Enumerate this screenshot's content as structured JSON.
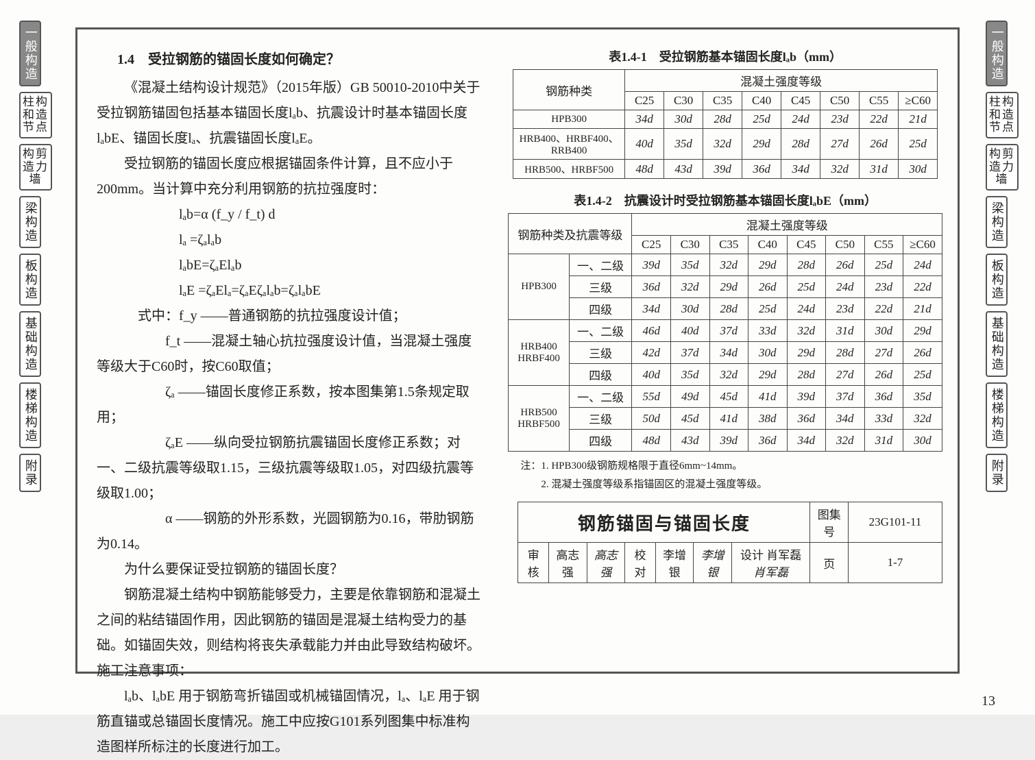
{
  "tabs": {
    "items": [
      {
        "label": "一般构造",
        "active": true
      },
      {
        "label": "柱构和造节点",
        "wide": true
      },
      {
        "label": "构剪造力墙",
        "wide": true
      },
      {
        "label": "梁构造"
      },
      {
        "label": "板构造"
      },
      {
        "label": "基础构造"
      },
      {
        "label": "楼梯构造"
      },
      {
        "label": "附录"
      }
    ]
  },
  "left": {
    "heading": "1.4　受拉钢筋的锚固长度如何确定？",
    "p1": "《混凝土结构设计规范》（2015年版）GB 50010-2010中关于受拉钢筋锚固包括基本锚固长度lₐb、抗震设计时基本锚固长度lₐbE、锚固长度lₐ、抗震锚固长度lₐE。",
    "p2": "受拉钢筋的锚固长度应根据锚固条件计算，且不应小于200mm。当计算中充分利用钢筋的抗拉强度时：",
    "f1": "lₐb=α (f_y / f_t) d",
    "f2": "lₐ =ζₐlₐb",
    "f3": "lₐbE=ζₐElₐb",
    "f4": "lₐE =ζₐElₐ=ζₐEζₐlₐb=ζₐlₐbE",
    "legend_head": "式中：f_y ——普通钢筋的抗拉强度设计值；",
    "legend_ft": "f_t ——混凝土轴心抗拉强度设计值，当混凝土强度等级大于C60时，按C60取值；",
    "legend_za": "ζₐ ——锚固长度修正系数，按本图集第1.5条规定取用；",
    "legend_zae": "ζₐE ——纵向受拉钢筋抗震锚固长度修正系数；对一、二级抗震等级取1.15，三级抗震等级取1.05，对四级抗震等级取1.00；",
    "legend_a": "α ——钢筋的外形系数，光圆钢筋为0.16，带肋钢筋为0.14。",
    "p3": "为什么要保证受拉钢筋的锚固长度？",
    "p4": "钢筋混凝土结构中钢筋能够受力，主要是依靠钢筋和混凝土之间的粘结锚固作用，因此钢筋的锚固是混凝土结构受力的基础。如锚固失效，则结构将丧失承载能力并由此导致结构破坏。",
    "p5": "施工注意事项：",
    "p6": "lₐb、lₐbE 用于钢筋弯折锚固或机械锚固情况，lₐ、lₐE 用于钢筋直锚或总锚固长度情况。施工中应按G101系列图集中标准构造图样所标注的长度进行加工。"
  },
  "table1": {
    "title": "表1.4-1　受拉钢筋基本锚固长度lₐb（mm）",
    "head1": "钢筋种类",
    "head2": "混凝土强度等级",
    "cols": [
      "C25",
      "C30",
      "C35",
      "C40",
      "C45",
      "C50",
      "C55",
      "≥C60"
    ],
    "rows": [
      {
        "name": "HPB300",
        "v": [
          "34d",
          "30d",
          "28d",
          "25d",
          "24d",
          "23d",
          "22d",
          "21d"
        ]
      },
      {
        "name": "HRB400、HRBF400、RRB400",
        "v": [
          "40d",
          "35d",
          "32d",
          "29d",
          "28d",
          "27d",
          "26d",
          "25d"
        ]
      },
      {
        "name": "HRB500、HRBF500",
        "v": [
          "48d",
          "43d",
          "39d",
          "36d",
          "34d",
          "32d",
          "31d",
          "30d"
        ]
      }
    ]
  },
  "table2": {
    "title": "表1.4-2　抗震设计时受拉钢筋基本锚固长度lₐbE（mm）",
    "head1": "钢筋种类及抗震等级",
    "head2": "混凝土强度等级",
    "cols": [
      "C25",
      "C30",
      "C35",
      "C40",
      "C45",
      "C50",
      "C55",
      "≥C60"
    ],
    "groups": [
      {
        "name": "HPB300",
        "levels": [
          {
            "lv": "一、二级",
            "v": [
              "39d",
              "35d",
              "32d",
              "29d",
              "28d",
              "26d",
              "25d",
              "24d"
            ]
          },
          {
            "lv": "三级",
            "v": [
              "36d",
              "32d",
              "29d",
              "26d",
              "25d",
              "24d",
              "23d",
              "22d"
            ]
          },
          {
            "lv": "四级",
            "v": [
              "34d",
              "30d",
              "28d",
              "25d",
              "24d",
              "23d",
              "22d",
              "21d"
            ]
          }
        ]
      },
      {
        "name": "HRB400 HRBF400",
        "levels": [
          {
            "lv": "一、二级",
            "v": [
              "46d",
              "40d",
              "37d",
              "33d",
              "32d",
              "31d",
              "30d",
              "29d"
            ]
          },
          {
            "lv": "三级",
            "v": [
              "42d",
              "37d",
              "34d",
              "30d",
              "29d",
              "28d",
              "27d",
              "26d"
            ]
          },
          {
            "lv": "四级",
            "v": [
              "40d",
              "35d",
              "32d",
              "29d",
              "28d",
              "27d",
              "26d",
              "25d"
            ]
          }
        ]
      },
      {
        "name": "HRB500 HRBF500",
        "levels": [
          {
            "lv": "一、二级",
            "v": [
              "55d",
              "49d",
              "45d",
              "41d",
              "39d",
              "37d",
              "36d",
              "35d"
            ]
          },
          {
            "lv": "三级",
            "v": [
              "50d",
              "45d",
              "41d",
              "38d",
              "36d",
              "34d",
              "33d",
              "32d"
            ]
          },
          {
            "lv": "四级",
            "v": [
              "48d",
              "43d",
              "39d",
              "36d",
              "34d",
              "32d",
              "31d",
              "30d"
            ]
          }
        ]
      }
    ],
    "note1": "注：1. HPB300级钢筋规格限于直径6mm~14mm。",
    "note2": "　　2. 混凝土强度等级系指锚固区的混凝土强度等级。"
  },
  "titlebox": {
    "title": "钢筋锚固与锚固长度",
    "shenhe": "审核",
    "shenhe_v": "高志强",
    "shenhe_s": "高志强",
    "jiaodui": "校对",
    "jiaodui_v": "李增银",
    "jiaodui_s": "李增银",
    "sheji": "设计",
    "sheji_v": "肖军磊",
    "sheji_s": "肖军磊",
    "tuji": "图集号",
    "tuji_v": "23G101-11",
    "ye": "页",
    "ye_v": "1-7"
  },
  "pagenum": "13"
}
